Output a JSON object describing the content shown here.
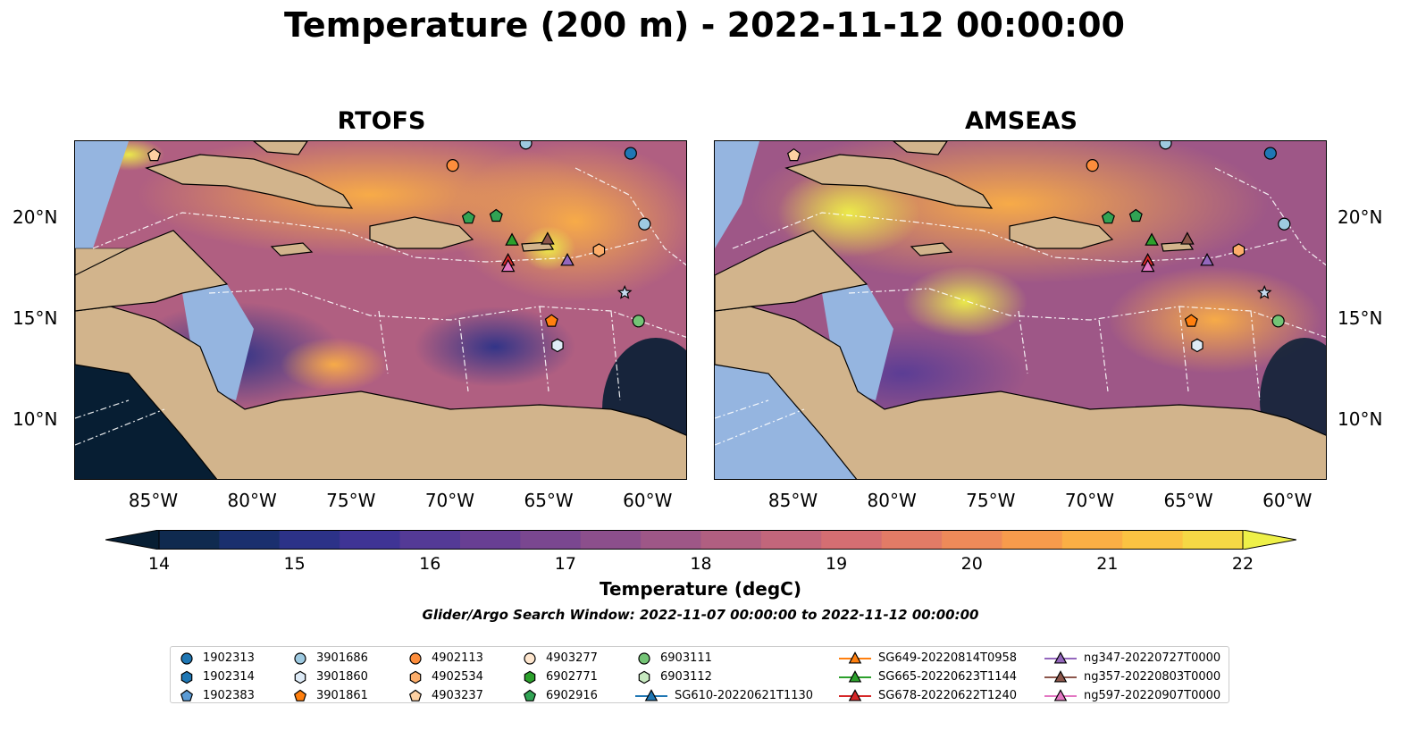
{
  "title": "Temperature (200 m) - 2022-11-12 00:00:00",
  "panels": [
    {
      "title": "RTOFS"
    },
    {
      "title": "AMSEAS"
    }
  ],
  "lon_ticks": [
    "85°W",
    "80°W",
    "75°W",
    "70°W",
    "65°W",
    "60°W"
  ],
  "lat_ticks": [
    "20°N",
    "15°N",
    "10°N"
  ],
  "colorbar": {
    "label": "Temperature (degC)",
    "ticks": [
      "14",
      "15",
      "16",
      "17",
      "18",
      "19",
      "20",
      "21",
      "22"
    ],
    "colors": [
      "#071e33",
      "#0f2a4f",
      "#1a2f6e",
      "#2c3288",
      "#3f3495",
      "#543a96",
      "#683f93",
      "#7a4790",
      "#8c4f8c",
      "#9e5787",
      "#b05f81",
      "#c2667b",
      "#d46e72",
      "#e27b66",
      "#ee8a59",
      "#f79b4c",
      "#fbaf45",
      "#fbc342",
      "#f5d845",
      "#eef048"
    ]
  },
  "search_window": "Glider/Argo Search Window: 2022-11-07 00:00:00 to 2022-11-12 00:00:00",
  "legend": {
    "columns": [
      [
        {
          "label": "1902313",
          "marker": "circle",
          "color": "#1f77b4"
        },
        {
          "label": "1902314",
          "marker": "hexagon",
          "color": "#1f77b4"
        },
        {
          "label": "1902383",
          "marker": "pentagon",
          "color": "#5b9bd5"
        }
      ],
      [
        {
          "label": "3901686",
          "marker": "circle",
          "color": "#9ecae1"
        },
        {
          "label": "3901860",
          "marker": "hexagon",
          "color": "#deebf7"
        },
        {
          "label": "3901861",
          "marker": "pentagon",
          "color": "#ff7f0e"
        }
      ],
      [
        {
          "label": "4902113",
          "marker": "circle",
          "color": "#fd8d3c"
        },
        {
          "label": "4902534",
          "marker": "hexagon",
          "color": "#fdae6b"
        },
        {
          "label": "4903237",
          "marker": "pentagon",
          "color": "#fdd0a2"
        }
      ],
      [
        {
          "label": "4903277",
          "marker": "circle",
          "color": "#fee6ce"
        },
        {
          "label": "6902771",
          "marker": "hexagon",
          "color": "#2ca02c"
        },
        {
          "label": "6902916",
          "marker": "pentagon",
          "color": "#31a354"
        }
      ],
      [
        {
          "label": "6903111",
          "marker": "circle",
          "color": "#74c476"
        },
        {
          "label": "6903112",
          "marker": "hexagon",
          "color": "#c7e9c0"
        },
        {
          "label": "SG610-20220621T1130",
          "marker": "triangle-line",
          "color": "#1f77b4"
        }
      ],
      [
        {
          "label": "SG649-20220814T0958",
          "marker": "triangle-line",
          "color": "#ff7f0e"
        },
        {
          "label": "SG665-20220623T1144",
          "marker": "triangle-line",
          "color": "#2ca02c"
        },
        {
          "label": "SG678-20220622T1240",
          "marker": "triangle-line",
          "color": "#d62728"
        }
      ],
      [
        {
          "label": "ng347-20220727T0000",
          "marker": "triangle-line",
          "color": "#9467bd"
        },
        {
          "label": "ng357-20220803T0000",
          "marker": "triangle-line",
          "color": "#8c564b"
        },
        {
          "label": "ng597-20220907T0000",
          "marker": "triangle-line",
          "color": "#e377c2"
        }
      ]
    ]
  },
  "markers": [
    {
      "lon": -85.0,
      "lat": 23.1,
      "marker": "pentagon",
      "color": "#fdd0a2"
    },
    {
      "lon": -69.9,
      "lat": 22.6,
      "marker": "circle",
      "color": "#fd8d3c"
    },
    {
      "lon": -60.9,
      "lat": 23.2,
      "marker": "circle",
      "color": "#1f77b4"
    },
    {
      "lon": -66.2,
      "lat": 23.7,
      "marker": "circle",
      "color": "#9ecae1"
    },
    {
      "lon": -60.2,
      "lat": 19.7,
      "marker": "circle",
      "color": "#9ecae1"
    },
    {
      "lon": -69.1,
      "lat": 20.0,
      "marker": "pentagon",
      "color": "#31a354"
    },
    {
      "lon": -67.7,
      "lat": 20.1,
      "marker": "pentagon",
      "color": "#31a354"
    },
    {
      "lon": -66.9,
      "lat": 18.9,
      "marker": "triangle",
      "color": "#2ca02c"
    },
    {
      "lon": -65.1,
      "lat": 18.95,
      "marker": "triangle",
      "color": "#8c564b"
    },
    {
      "lon": -67.1,
      "lat": 17.9,
      "marker": "triangle",
      "color": "#d62728"
    },
    {
      "lon": -67.1,
      "lat": 17.6,
      "marker": "triangle",
      "color": "#e377c2"
    },
    {
      "lon": -64.1,
      "lat": 17.9,
      "marker": "triangle",
      "color": "#9467bd"
    },
    {
      "lon": -62.5,
      "lat": 18.4,
      "marker": "hexagon",
      "color": "#fdae6b"
    },
    {
      "lon": -64.9,
      "lat": 14.9,
      "marker": "pentagon",
      "color": "#ff7f0e"
    },
    {
      "lon": -60.5,
      "lat": 14.9,
      "marker": "circle",
      "color": "#74c476"
    },
    {
      "lon": -64.6,
      "lat": 13.7,
      "marker": "hexagon",
      "color": "#deebf7"
    },
    {
      "lon": -61.2,
      "lat": 16.3,
      "marker": "star",
      "color": "#c6dbef"
    }
  ]
}
